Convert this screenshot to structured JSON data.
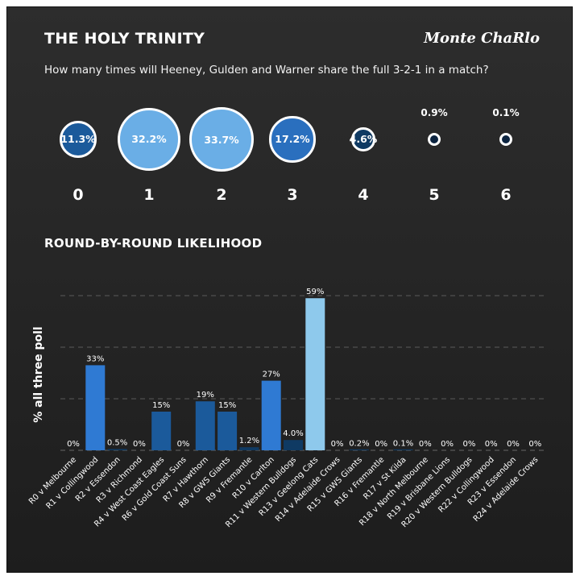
{
  "header": {
    "title": "THE HOLY TRINITY",
    "brand": "Monte ChaRlo",
    "subtitle": "How many times will Heeney, Gulden and Warner share the full 3-2-1 in a match?"
  },
  "distribution": [
    {
      "count": "0",
      "label": "11.3%",
      "value": 11.3,
      "color": "#1b5a9b",
      "label_outside": false
    },
    {
      "count": "1",
      "label": "32.2%",
      "value": 32.2,
      "color": "#6aaee6",
      "label_outside": false
    },
    {
      "count": "2",
      "label": "33.7%",
      "value": 33.7,
      "color": "#6aaee6",
      "label_outside": false
    },
    {
      "count": "3",
      "label": "17.2%",
      "value": 17.2,
      "color": "#2a6fbe",
      "label_outside": false
    },
    {
      "count": "4",
      "label": "4.6%",
      "value": 4.6,
      "color": "#0f3a63",
      "label_outside": false
    },
    {
      "count": "5",
      "label": "0.9%",
      "value": 0.9,
      "color": "#0c2440",
      "label_outside": true
    },
    {
      "count": "6",
      "label": "0.1%",
      "value": 0.1,
      "color": "#0c2440",
      "label_outside": true
    }
  ],
  "section_title": "ROUND-BY-ROUND LIKELIHOOD",
  "chart_data": {
    "type": "bar",
    "ylabel": "% all three poll",
    "ylim": [
      0,
      60
    ],
    "grid": true,
    "categories": [
      "R0 v Melbourne",
      "R1 v Collingwood",
      "R2 v Essendon",
      "R3 v Richmond",
      "R4 v West Coast Eagles",
      "R6 v Gold Coast Suns",
      "R7 v Hawthorn",
      "R8 v GWS Giants",
      "R9 v Fremantle",
      "R10 v Carlton",
      "R11 v Western Bulldogs",
      "R13 v Geelong Cats",
      "R14 v Adelaide Crows",
      "R15 v GWS Giants",
      "R16 v Fremantle",
      "R17 v St Kilda",
      "R18 v North Melbourne",
      "R19 v Brisbane Lions",
      "R20 v Western Bulldogs",
      "R22 v Collingwood",
      "R23 v Essendon",
      "R24 v Adelaide Crows"
    ],
    "values": [
      0,
      33,
      0.5,
      0,
      15,
      0,
      19,
      15,
      1.2,
      27,
      4.0,
      59,
      0,
      0.2,
      0,
      0.1,
      0,
      0,
      0,
      0,
      0,
      0
    ],
    "labels": [
      "0%",
      "33%",
      "0.5%",
      "0%",
      "15%",
      "0%",
      "19%",
      "15%",
      "1.2%",
      "27%",
      "4.0%",
      "59%",
      "0%",
      "0.2%",
      "0%",
      "0.1%",
      "0%",
      "0%",
      "0%",
      "0%",
      "0%",
      "0%"
    ],
    "colors": {
      "low": "#0f3a63",
      "mid": "#1b5a9b",
      "high": "#2f7ad3",
      "top": "#8ec9ec"
    }
  }
}
